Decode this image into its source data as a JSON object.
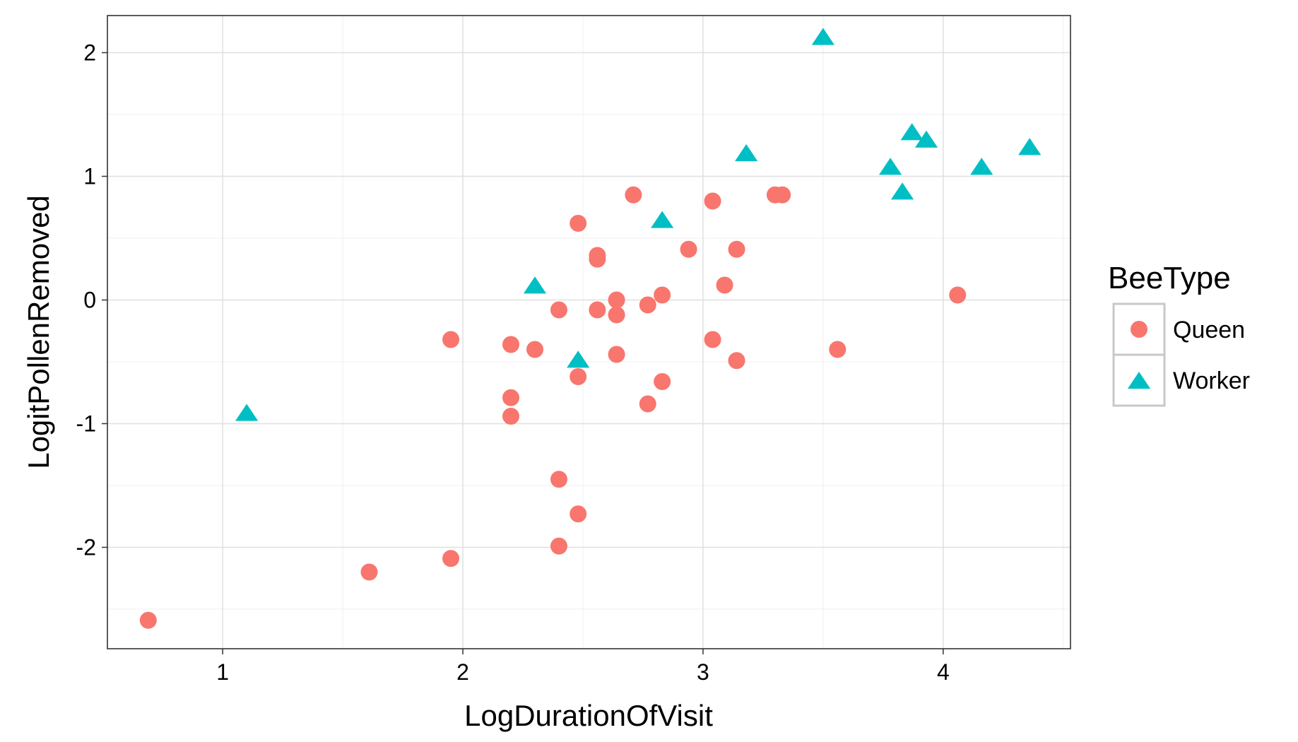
{
  "chart_data": {
    "type": "scatter",
    "title": "",
    "xlabel": "LogDurationOfVisit",
    "ylabel": "LogitPollenRemoved",
    "xlim": [
      0.52,
      4.53
    ],
    "ylim": [
      -2.82,
      2.3
    ],
    "x_ticks": [
      1,
      2,
      3,
      4
    ],
    "y_ticks": [
      -2,
      -1,
      0,
      1,
      2
    ],
    "x_tick_labels": [
      "1",
      "2",
      "3",
      "4"
    ],
    "y_tick_labels": [
      "-2",
      "-1",
      "0",
      "1",
      "2"
    ],
    "grid": true,
    "legend": {
      "title": "BeeType",
      "position": "right"
    },
    "series": [
      {
        "name": "Queen",
        "color": "#F8766D",
        "marker": "circle",
        "points": [
          [
            0.69,
            -2.59
          ],
          [
            1.61,
            -2.2
          ],
          [
            1.95,
            -2.09
          ],
          [
            1.95,
            -0.32
          ],
          [
            2.2,
            -0.36
          ],
          [
            2.2,
            -0.79
          ],
          [
            2.2,
            -0.94
          ],
          [
            2.3,
            -0.4
          ],
          [
            2.4,
            -0.08
          ],
          [
            2.4,
            -1.45
          ],
          [
            2.4,
            -1.99
          ],
          [
            2.48,
            0.62
          ],
          [
            2.48,
            -0.62
          ],
          [
            2.48,
            -1.73
          ],
          [
            2.56,
            0.36
          ],
          [
            2.56,
            0.33
          ],
          [
            2.56,
            -0.08
          ],
          [
            2.64,
            0.0
          ],
          [
            2.64,
            -0.12
          ],
          [
            2.64,
            -0.44
          ],
          [
            2.71,
            0.85
          ],
          [
            2.77,
            -0.04
          ],
          [
            2.77,
            -0.84
          ],
          [
            2.83,
            0.04
          ],
          [
            2.83,
            -0.66
          ],
          [
            2.94,
            0.41
          ],
          [
            3.04,
            0.8
          ],
          [
            3.04,
            -0.32
          ],
          [
            3.09,
            0.12
          ],
          [
            3.14,
            0.41
          ],
          [
            3.14,
            -0.49
          ],
          [
            3.3,
            0.85
          ],
          [
            3.33,
            0.85
          ],
          [
            3.56,
            -0.4
          ],
          [
            4.06,
            0.04
          ]
        ]
      },
      {
        "name": "Worker",
        "color": "#00BFC4",
        "marker": "triangle",
        "points": [
          [
            1.1,
            -0.92
          ],
          [
            2.3,
            0.11
          ],
          [
            2.48,
            -0.49
          ],
          [
            2.83,
            0.64
          ],
          [
            3.18,
            1.18
          ],
          [
            3.5,
            2.12
          ],
          [
            3.78,
            1.07
          ],
          [
            3.83,
            0.87
          ],
          [
            3.87,
            1.35
          ],
          [
            3.93,
            1.29
          ],
          [
            4.16,
            1.07
          ],
          [
            4.36,
            1.23
          ]
        ]
      }
    ]
  }
}
